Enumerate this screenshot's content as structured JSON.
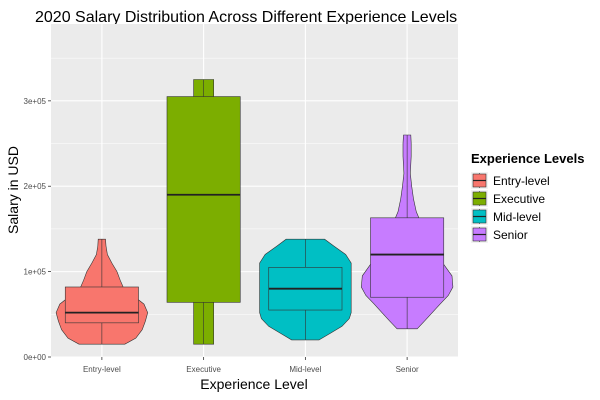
{
  "chart_data": {
    "type": "violin+box",
    "title": "2020 Salary Distribution Across Different Experience Levels",
    "xlabel": "Experience Level",
    "ylabel": "Salary in USD",
    "categories": [
      "Entry-level",
      "Executive",
      "Mid-level",
      "Senior"
    ],
    "ylim": [
      0,
      390000
    ],
    "yticks": [
      0,
      100000,
      200000,
      300000
    ],
    "ytick_labels": [
      "0e+00",
      "1e+05",
      "2e+05",
      "3e+05"
    ],
    "grid": true,
    "legend": {
      "title": "Experience Levels",
      "position": "right",
      "entries": [
        "Entry-level",
        "Executive",
        "Mid-level",
        "Senior"
      ]
    },
    "colors": {
      "Entry-level": "#F8766D",
      "Executive": "#7CAE00",
      "Mid-level": "#00BFC4",
      "Senior": "#C77CFF",
      "panel": "#EBEBEB",
      "gridline": "#FFFFFF"
    },
    "box": {
      "Entry-level": {
        "q1": 40000,
        "median": 52000,
        "q3": 82000,
        "whisker_low": 15000,
        "whisker_high": 138000
      },
      "Executive": {
        "q1": 64000,
        "median": 190000,
        "q3": 305000,
        "whisker_low": 15000,
        "whisker_high": 325000
      },
      "Mid-level": {
        "q1": 55000,
        "median": 80000,
        "q3": 105000,
        "whisker_low": 20000,
        "whisker_high": 138000
      },
      "Senior": {
        "q1": 70000,
        "median": 120000,
        "q3": 163000,
        "whisker_low": 33000,
        "whisker_high": 260000
      }
    },
    "violin": {
      "Entry-level": [
        [
          15000,
          0.5
        ],
        [
          22000,
          0.74
        ],
        [
          32000,
          0.88
        ],
        [
          42000,
          0.95
        ],
        [
          52000,
          1.0
        ],
        [
          62000,
          0.92
        ],
        [
          72000,
          0.68
        ],
        [
          80000,
          0.48
        ],
        [
          90000,
          0.4
        ],
        [
          100000,
          0.33
        ],
        [
          110000,
          0.22
        ],
        [
          120000,
          0.12
        ],
        [
          130000,
          0.09
        ],
        [
          138000,
          0.08
        ]
      ],
      "Executive": [
        [
          15000,
          0.22
        ],
        [
          25000,
          0.22
        ],
        [
          40000,
          0.22
        ],
        [
          55000,
          0.22
        ],
        [
          70000,
          0.22
        ],
        [
          100000,
          0.22
        ],
        [
          130000,
          0.22
        ],
        [
          160000,
          0.22
        ],
        [
          190000,
          0.22
        ],
        [
          220000,
          0.22
        ],
        [
          250000,
          0.22
        ],
        [
          280000,
          0.22
        ],
        [
          305000,
          0.22
        ],
        [
          315000,
          0.22
        ],
        [
          325000,
          0.22
        ]
      ],
      "Mid-level": [
        [
          20000,
          0.3
        ],
        [
          28000,
          0.55
        ],
        [
          36000,
          0.8
        ],
        [
          45000,
          0.96
        ],
        [
          52000,
          1.0
        ],
        [
          60000,
          1.0
        ],
        [
          80000,
          1.0
        ],
        [
          100000,
          1.0
        ],
        [
          110000,
          1.0
        ],
        [
          120000,
          0.88
        ],
        [
          130000,
          0.62
        ],
        [
          138000,
          0.42
        ]
      ],
      "Senior": [
        [
          33000,
          0.22
        ],
        [
          42000,
          0.38
        ],
        [
          52000,
          0.55
        ],
        [
          62000,
          0.72
        ],
        [
          72000,
          0.9
        ],
        [
          82000,
          1.0
        ],
        [
          95000,
          0.98
        ],
        [
          110000,
          0.78
        ],
        [
          125000,
          0.52
        ],
        [
          140000,
          0.4
        ],
        [
          155000,
          0.32
        ],
        [
          170000,
          0.2
        ],
        [
          185000,
          0.14
        ],
        [
          200000,
          0.1
        ],
        [
          215000,
          0.07
        ],
        [
          235000,
          0.09
        ],
        [
          250000,
          0.09
        ],
        [
          260000,
          0.08
        ]
      ]
    }
  }
}
